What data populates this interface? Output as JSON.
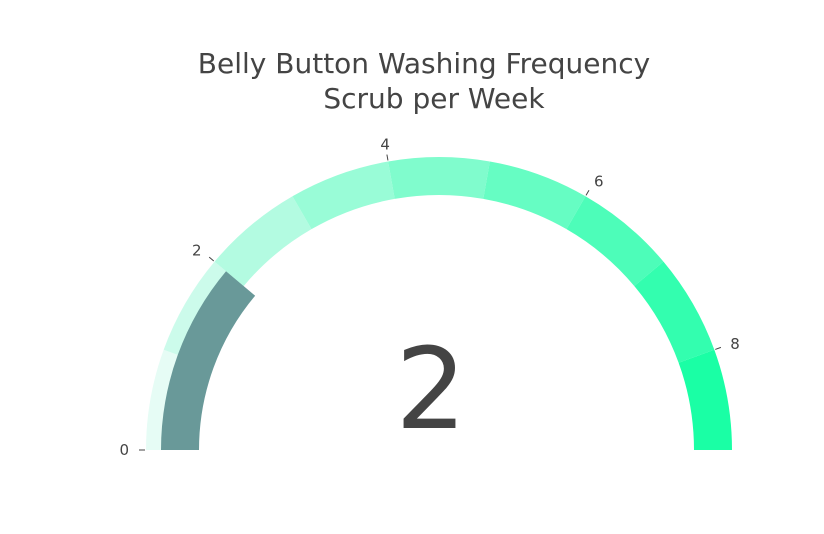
{
  "chart_data": {
    "type": "gauge",
    "title": "Belly Button Washing Frequency",
    "subtitle": "Scrub per Week",
    "value": 2,
    "value_display": "2",
    "range": [
      0,
      9
    ],
    "ticks": [
      {
        "value": 0,
        "label": "0"
      },
      {
        "value": 2,
        "label": "2"
      },
      {
        "value": 4,
        "label": "4"
      },
      {
        "value": 6,
        "label": "6"
      },
      {
        "value": 8,
        "label": "8"
      }
    ],
    "steps": [
      {
        "range": [
          0,
          1
        ],
        "color": "#e6fcf5"
      },
      {
        "range": [
          1,
          2
        ],
        "color": "#ccfbeb"
      },
      {
        "range": [
          2,
          3
        ],
        "color": "#b3fbe1"
      },
      {
        "range": [
          3,
          4
        ],
        "color": "#99fcd7"
      },
      {
        "range": [
          4,
          5
        ],
        "color": "#80fccd"
      },
      {
        "range": [
          5,
          6
        ],
        "color": "#66fdc3"
      },
      {
        "range": [
          6,
          7
        ],
        "color": "#4dfdb9"
      },
      {
        "range": [
          7,
          8
        ],
        "color": "#33feaf"
      },
      {
        "range": [
          8,
          9
        ],
        "color": "#1affa5"
      }
    ],
    "bar_color": "#699999",
    "text_color": "#444444"
  }
}
